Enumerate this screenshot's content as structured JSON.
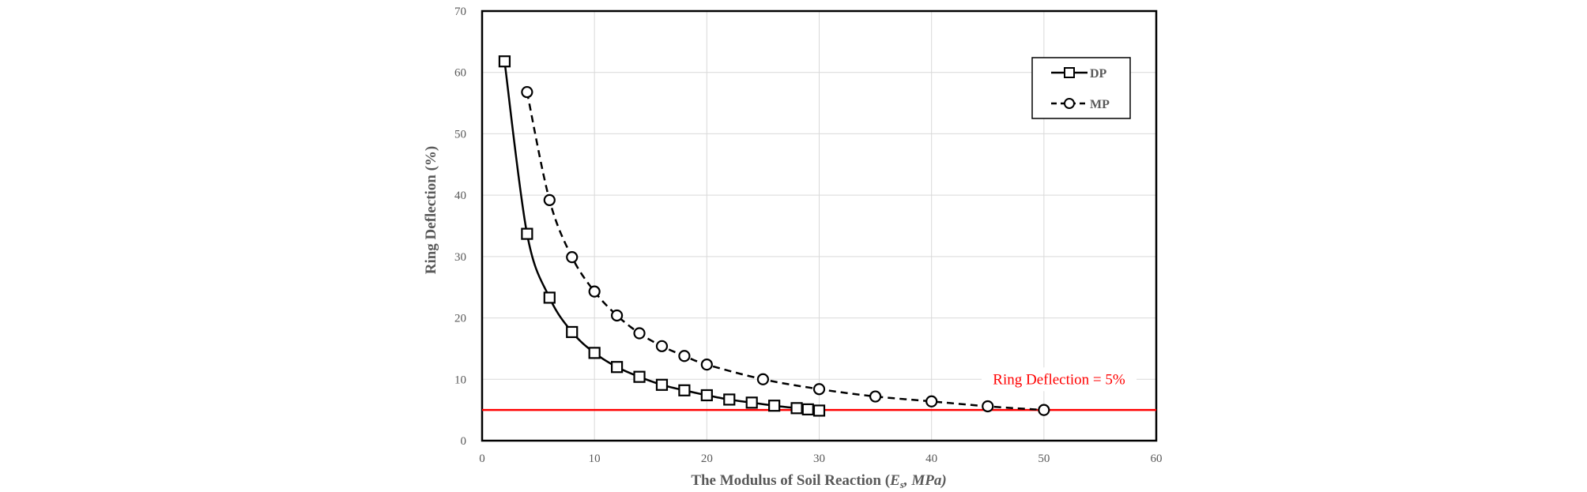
{
  "chart_data": {
    "type": "line",
    "title": "",
    "xlabel": "The Modulus of Soil Reaction (Eₛ, MPa)",
    "xlabel_parts": {
      "prefix": "The Modulus of Soil Reaction (",
      "var": "E",
      "sub": "s",
      "suffix": ", MPa)"
    },
    "ylabel": "Ring Deflection (%)",
    "xlim": [
      0,
      60
    ],
    "ylim": [
      0,
      70
    ],
    "xticks": [
      0,
      10,
      20,
      30,
      40,
      50,
      60
    ],
    "yticks": [
      0,
      10,
      20,
      30,
      40,
      50,
      60,
      70
    ],
    "grid": true,
    "legend_position": "top-right",
    "series": [
      {
        "name": "DP",
        "marker": "square",
        "line_style": "solid",
        "x": [
          2,
          4,
          6,
          8,
          10,
          12,
          14,
          16,
          18,
          20,
          22,
          24,
          26,
          28,
          29,
          30
        ],
        "y": [
          61.8,
          33.7,
          23.3,
          17.7,
          14.3,
          12.0,
          10.4,
          9.1,
          8.2,
          7.4,
          6.7,
          6.2,
          5.7,
          5.3,
          5.1,
          4.9
        ]
      },
      {
        "name": "MP",
        "marker": "circle",
        "line_style": "dashed",
        "x": [
          4,
          6,
          8,
          10,
          12,
          14,
          16,
          18,
          20,
          25,
          30,
          35,
          40,
          45,
          50
        ],
        "y": [
          56.8,
          39.2,
          29.9,
          24.3,
          20.4,
          17.5,
          15.4,
          13.8,
          12.4,
          10.0,
          8.4,
          7.2,
          6.4,
          5.6,
          5.0
        ]
      }
    ],
    "reference_line": {
      "y": 5,
      "label": "Ring Deflection = 5%",
      "color": "#ff0000"
    }
  },
  "colors": {
    "series": "#000000",
    "grid": "#d9d9d9",
    "axis_text": "#595959",
    "reference": "#ff0000"
  }
}
